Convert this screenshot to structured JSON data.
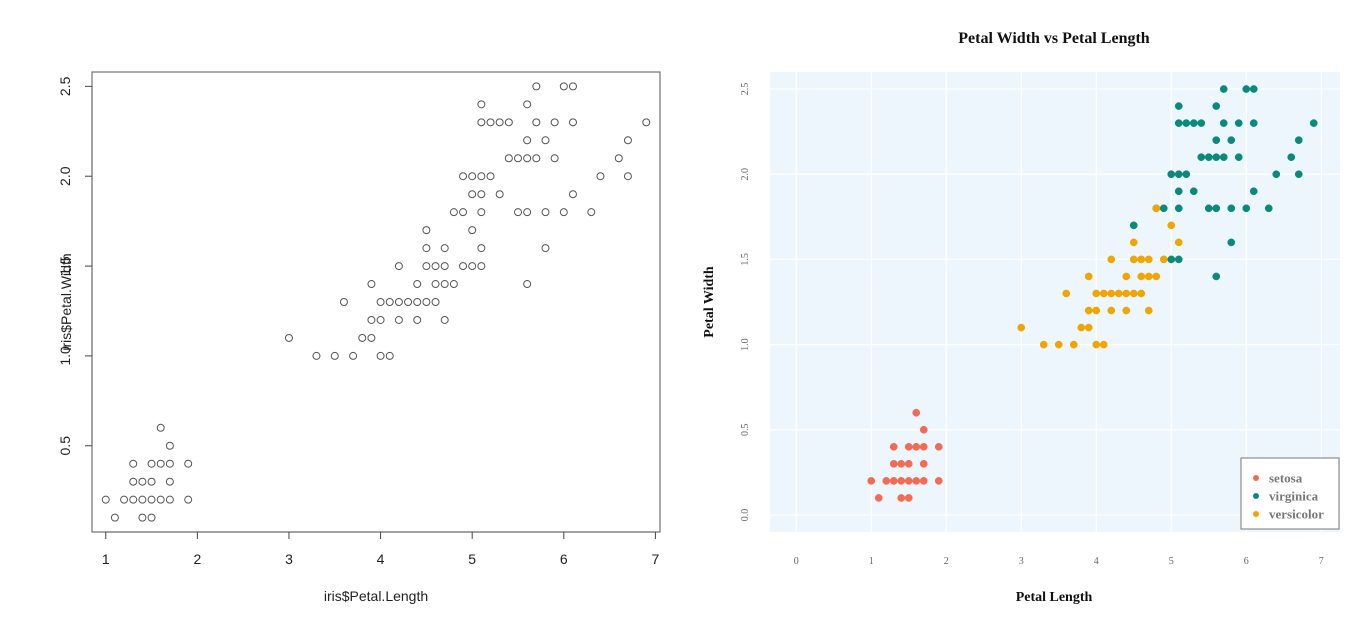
{
  "chart_data": [
    {
      "type": "scatter",
      "title": "",
      "xlabel": "iris$Petal.Length",
      "ylabel": "iris$Petal.Width",
      "xlim": [
        0.85,
        7.05
      ],
      "ylim": [
        0.02,
        2.58
      ],
      "xticks": [
        1,
        2,
        3,
        4,
        5,
        6,
        7
      ],
      "xtick_labels": [
        "1",
        "2",
        "3",
        "4",
        "5",
        "6",
        "7"
      ],
      "yticks": [
        0.5,
        1.0,
        1.5,
        2.0,
        2.5
      ],
      "ytick_labels": [
        "0.5",
        "1.0",
        "1.5",
        "2.0",
        "2.5"
      ],
      "grid": false,
      "marker": "open-circle",
      "point_color": "#555555",
      "points": [
        [
          1.0,
          0.2
        ],
        [
          1.1,
          0.1
        ],
        [
          1.2,
          0.2
        ],
        [
          1.3,
          0.2
        ],
        [
          1.3,
          0.3
        ],
        [
          1.3,
          0.4
        ],
        [
          1.4,
          0.1
        ],
        [
          1.4,
          0.2
        ],
        [
          1.4,
          0.3
        ],
        [
          1.5,
          0.1
        ],
        [
          1.5,
          0.2
        ],
        [
          1.5,
          0.3
        ],
        [
          1.5,
          0.4
        ],
        [
          1.6,
          0.2
        ],
        [
          1.6,
          0.4
        ],
        [
          1.6,
          0.6
        ],
        [
          1.7,
          0.2
        ],
        [
          1.7,
          0.3
        ],
        [
          1.7,
          0.4
        ],
        [
          1.7,
          0.5
        ],
        [
          1.9,
          0.2
        ],
        [
          1.9,
          0.4
        ],
        [
          3.0,
          1.1
        ],
        [
          3.3,
          1.0
        ],
        [
          3.5,
          1.0
        ],
        [
          3.6,
          1.3
        ],
        [
          3.7,
          1.0
        ],
        [
          3.8,
          1.1
        ],
        [
          3.9,
          1.1
        ],
        [
          3.9,
          1.2
        ],
        [
          3.9,
          1.4
        ],
        [
          4.0,
          1.0
        ],
        [
          4.0,
          1.2
        ],
        [
          4.0,
          1.3
        ],
        [
          4.1,
          1.0
        ],
        [
          4.1,
          1.3
        ],
        [
          4.2,
          1.2
        ],
        [
          4.2,
          1.3
        ],
        [
          4.2,
          1.5
        ],
        [
          4.3,
          1.3
        ],
        [
          4.4,
          1.2
        ],
        [
          4.4,
          1.3
        ],
        [
          4.4,
          1.4
        ],
        [
          4.5,
          1.3
        ],
        [
          4.5,
          1.5
        ],
        [
          4.5,
          1.6
        ],
        [
          4.5,
          1.7
        ],
        [
          4.6,
          1.3
        ],
        [
          4.6,
          1.4
        ],
        [
          4.6,
          1.5
        ],
        [
          4.7,
          1.2
        ],
        [
          4.7,
          1.4
        ],
        [
          4.7,
          1.5
        ],
        [
          4.7,
          1.6
        ],
        [
          4.8,
          1.4
        ],
        [
          4.8,
          1.8
        ],
        [
          4.9,
          1.5
        ],
        [
          4.9,
          1.8
        ],
        [
          4.9,
          2.0
        ],
        [
          5.0,
          1.5
        ],
        [
          5.0,
          1.7
        ],
        [
          5.0,
          1.9
        ],
        [
          5.0,
          2.0
        ],
        [
          5.1,
          1.5
        ],
        [
          5.1,
          1.6
        ],
        [
          5.1,
          1.8
        ],
        [
          5.1,
          1.9
        ],
        [
          5.1,
          2.0
        ],
        [
          5.1,
          2.3
        ],
        [
          5.1,
          2.4
        ],
        [
          5.2,
          2.0
        ],
        [
          5.2,
          2.3
        ],
        [
          5.3,
          1.9
        ],
        [
          5.3,
          2.3
        ],
        [
          5.4,
          2.1
        ],
        [
          5.4,
          2.3
        ],
        [
          5.5,
          1.8
        ],
        [
          5.5,
          2.1
        ],
        [
          5.6,
          1.4
        ],
        [
          5.6,
          1.8
        ],
        [
          5.6,
          2.1
        ],
        [
          5.6,
          2.2
        ],
        [
          5.6,
          2.4
        ],
        [
          5.7,
          2.1
        ],
        [
          5.7,
          2.3
        ],
        [
          5.7,
          2.5
        ],
        [
          5.8,
          1.6
        ],
        [
          5.8,
          1.8
        ],
        [
          5.8,
          2.2
        ],
        [
          5.9,
          2.1
        ],
        [
          5.9,
          2.3
        ],
        [
          6.0,
          1.8
        ],
        [
          6.0,
          2.5
        ],
        [
          6.1,
          1.9
        ],
        [
          6.1,
          2.3
        ],
        [
          6.1,
          2.5
        ],
        [
          6.3,
          1.8
        ],
        [
          6.4,
          2.0
        ],
        [
          6.6,
          2.1
        ],
        [
          6.7,
          2.0
        ],
        [
          6.7,
          2.2
        ],
        [
          6.9,
          2.3
        ]
      ]
    },
    {
      "type": "scatter",
      "title": "Petal Width vs Petal Length",
      "xlabel": "Petal Length",
      "ylabel": "Petal Width",
      "xlim": [
        -0.35,
        7.25
      ],
      "ylim": [
        -0.1,
        2.6
      ],
      "xticks": [
        0,
        1,
        2,
        3,
        4,
        5,
        6,
        7
      ],
      "xtick_labels": [
        "0",
        "1",
        "2",
        "3",
        "4",
        "5",
        "6",
        "7"
      ],
      "yticks": [
        0.0,
        0.5,
        1.0,
        1.5,
        2.0,
        2.5
      ],
      "ytick_labels": [
        "0.0",
        "0.5",
        "1.0",
        "1.5",
        "2.0",
        "2.5"
      ],
      "grid": true,
      "background_color": "#eef6fd",
      "legend_position": "bottom-right",
      "series": [
        {
          "name": "setosa",
          "color": "#f26b52",
          "points": [
            [
              1.0,
              0.2
            ],
            [
              1.1,
              0.1
            ],
            [
              1.2,
              0.2
            ],
            [
              1.3,
              0.2
            ],
            [
              1.3,
              0.3
            ],
            [
              1.3,
              0.4
            ],
            [
              1.4,
              0.1
            ],
            [
              1.4,
              0.2
            ],
            [
              1.4,
              0.3
            ],
            [
              1.5,
              0.1
            ],
            [
              1.5,
              0.2
            ],
            [
              1.5,
              0.3
            ],
            [
              1.5,
              0.4
            ],
            [
              1.6,
              0.2
            ],
            [
              1.6,
              0.4
            ],
            [
              1.6,
              0.6
            ],
            [
              1.7,
              0.2
            ],
            [
              1.7,
              0.3
            ],
            [
              1.7,
              0.4
            ],
            [
              1.7,
              0.5
            ],
            [
              1.9,
              0.2
            ],
            [
              1.9,
              0.4
            ]
          ]
        },
        {
          "name": "virginica",
          "color": "#0a8a7d",
          "points": [
            [
              4.5,
              1.7
            ],
            [
              4.8,
              1.8
            ],
            [
              4.9,
              1.8
            ],
            [
              5.0,
              1.5
            ],
            [
              5.0,
              2.0
            ],
            [
              5.1,
              1.5
            ],
            [
              5.1,
              1.8
            ],
            [
              5.1,
              1.9
            ],
            [
              5.1,
              2.0
            ],
            [
              5.1,
              2.3
            ],
            [
              5.1,
              2.4
            ],
            [
              5.2,
              2.0
            ],
            [
              5.2,
              2.3
            ],
            [
              5.3,
              1.9
            ],
            [
              5.3,
              2.3
            ],
            [
              5.4,
              2.1
            ],
            [
              5.4,
              2.3
            ],
            [
              5.5,
              1.8
            ],
            [
              5.5,
              2.1
            ],
            [
              5.6,
              1.4
            ],
            [
              5.6,
              1.8
            ],
            [
              5.6,
              2.1
            ],
            [
              5.6,
              2.2
            ],
            [
              5.6,
              2.4
            ],
            [
              5.7,
              2.1
            ],
            [
              5.7,
              2.3
            ],
            [
              5.7,
              2.5
            ],
            [
              5.8,
              1.6
            ],
            [
              5.8,
              1.8
            ],
            [
              5.8,
              2.2
            ],
            [
              5.9,
              2.1
            ],
            [
              5.9,
              2.3
            ],
            [
              6.0,
              1.8
            ],
            [
              6.0,
              2.5
            ],
            [
              6.1,
              1.9
            ],
            [
              6.1,
              2.3
            ],
            [
              6.1,
              2.5
            ],
            [
              6.3,
              1.8
            ],
            [
              6.4,
              2.0
            ],
            [
              6.6,
              2.1
            ],
            [
              6.7,
              2.0
            ],
            [
              6.7,
              2.2
            ],
            [
              6.9,
              2.3
            ]
          ]
        },
        {
          "name": "versicolor",
          "color": "#f0a500",
          "points": [
            [
              3.0,
              1.1
            ],
            [
              3.3,
              1.0
            ],
            [
              3.5,
              1.0
            ],
            [
              3.6,
              1.3
            ],
            [
              3.7,
              1.0
            ],
            [
              3.8,
              1.1
            ],
            [
              3.9,
              1.1
            ],
            [
              3.9,
              1.2
            ],
            [
              3.9,
              1.4
            ],
            [
              4.0,
              1.0
            ],
            [
              4.0,
              1.2
            ],
            [
              4.0,
              1.3
            ],
            [
              4.1,
              1.0
            ],
            [
              4.1,
              1.3
            ],
            [
              4.2,
              1.2
            ],
            [
              4.2,
              1.3
            ],
            [
              4.2,
              1.5
            ],
            [
              4.3,
              1.3
            ],
            [
              4.4,
              1.2
            ],
            [
              4.4,
              1.3
            ],
            [
              4.4,
              1.4
            ],
            [
              4.5,
              1.3
            ],
            [
              4.5,
              1.5
            ],
            [
              4.5,
              1.6
            ],
            [
              4.6,
              1.3
            ],
            [
              4.6,
              1.4
            ],
            [
              4.6,
              1.5
            ],
            [
              4.7,
              1.2
            ],
            [
              4.7,
              1.4
            ],
            [
              4.7,
              1.5
            ],
            [
              4.8,
              1.4
            ],
            [
              4.8,
              1.8
            ],
            [
              4.9,
              1.5
            ],
            [
              5.0,
              1.7
            ],
            [
              5.1,
              1.6
            ]
          ]
        }
      ]
    }
  ]
}
